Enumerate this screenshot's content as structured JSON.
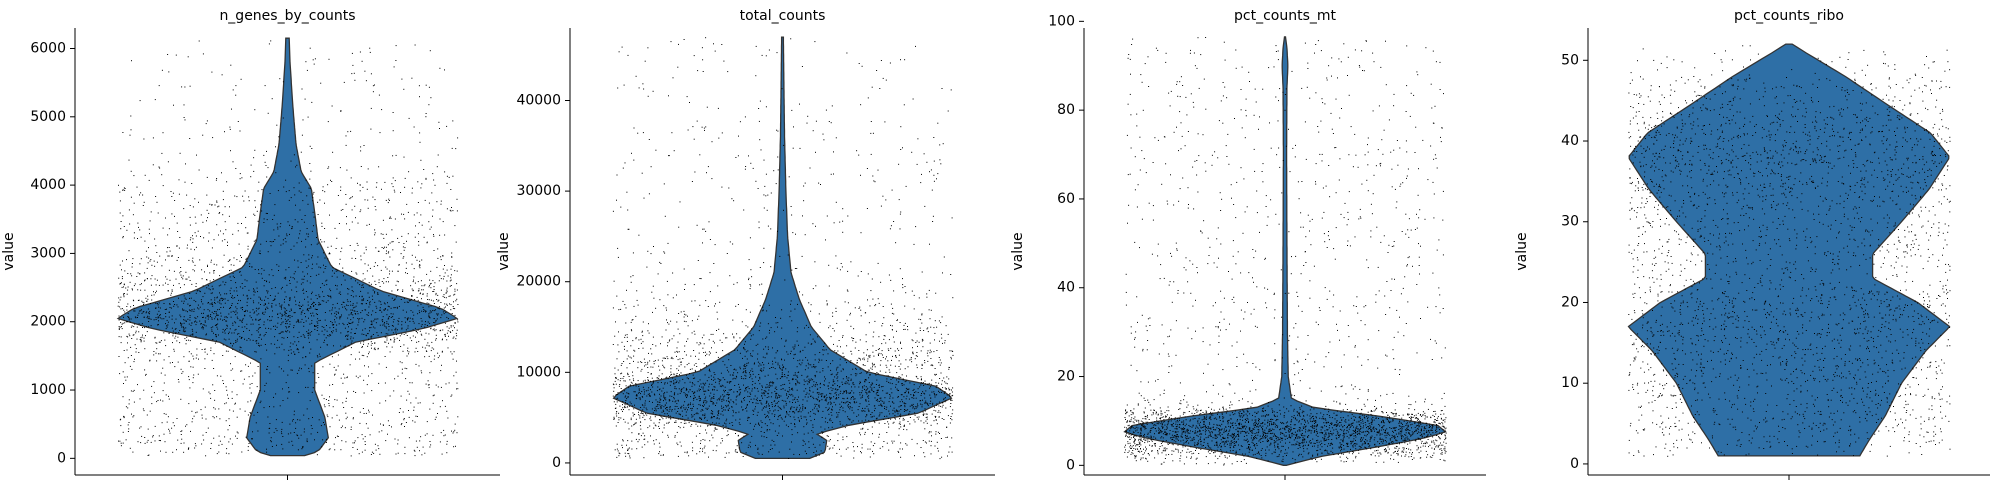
{
  "colors": {
    "violin_fill": "#2e6fa6",
    "violin_edge": "#333333",
    "points": "#000000"
  },
  "chart_data": [
    {
      "type": "violin",
      "title": "n_genes_by_counts",
      "ylabel": "value",
      "ylim": [
        -200,
        6300
      ],
      "yticks": [
        0,
        1000,
        2000,
        3000,
        4000,
        5000,
        6000
      ],
      "ytick_labels": [
        "0",
        "1000",
        "2000",
        "3000",
        "4000",
        "5000",
        "6000"
      ],
      "data_range": [
        40,
        6150
      ],
      "profile": [
        [
          40,
          0.1
        ],
        [
          100,
          0.18
        ],
        [
          300,
          0.24
        ],
        [
          600,
          0.22
        ],
        [
          1000,
          0.16
        ],
        [
          1400,
          0.16
        ],
        [
          1700,
          0.4
        ],
        [
          1900,
          0.8
        ],
        [
          2050,
          1.0
        ],
        [
          2200,
          0.9
        ],
        [
          2450,
          0.55
        ],
        [
          2800,
          0.26
        ],
        [
          3200,
          0.18
        ],
        [
          3600,
          0.16
        ],
        [
          3950,
          0.14
        ],
        [
          4200,
          0.08
        ],
        [
          4600,
          0.05
        ],
        [
          5200,
          0.03
        ],
        [
          5800,
          0.015
        ],
        [
          6150,
          0.01
        ]
      ]
    },
    {
      "type": "violin",
      "title": "total_counts",
      "ylabel": "value",
      "ylim": [
        -1000,
        48000
      ],
      "yticks": [
        0,
        10000,
        20000,
        30000,
        40000
      ],
      "ytick_labels": [
        "0",
        "10000",
        "20000",
        "30000",
        "40000"
      ],
      "data_range": [
        500,
        47000
      ],
      "profile": [
        [
          500,
          0.16
        ],
        [
          1200,
          0.25
        ],
        [
          2500,
          0.26
        ],
        [
          3200,
          0.2
        ],
        [
          4200,
          0.4
        ],
        [
          5500,
          0.8
        ],
        [
          7200,
          1.0
        ],
        [
          8500,
          0.9
        ],
        [
          10000,
          0.5
        ],
        [
          12500,
          0.28
        ],
        [
          15000,
          0.17
        ],
        [
          18000,
          0.1
        ],
        [
          21000,
          0.05
        ],
        [
          25000,
          0.03
        ],
        [
          30000,
          0.02
        ],
        [
          36000,
          0.012
        ],
        [
          42000,
          0.008
        ],
        [
          47000,
          0.005
        ]
      ]
    },
    {
      "type": "violin",
      "title": "pct_counts_mt",
      "ylabel": "value",
      "ylim": [
        -1.5,
        98.5
      ],
      "yticks": [
        0,
        20,
        40,
        60,
        80,
        100
      ],
      "ytick_labels": [
        "0",
        "20",
        "40",
        "60",
        "80",
        "100"
      ],
      "data_range": [
        0,
        96.5
      ],
      "profile": [
        [
          0,
          0.01
        ],
        [
          2,
          0.22
        ],
        [
          4,
          0.55
        ],
        [
          6,
          0.85
        ],
        [
          7.5,
          1.0
        ],
        [
          9,
          0.95
        ],
        [
          11,
          0.6
        ],
        [
          13,
          0.18
        ],
        [
          15,
          0.04
        ],
        [
          20,
          0.02
        ],
        [
          30,
          0.015
        ],
        [
          50,
          0.012
        ],
        [
          70,
          0.01
        ],
        [
          85,
          0.012
        ],
        [
          90,
          0.018
        ],
        [
          94,
          0.012
        ],
        [
          96.5,
          0.003
        ]
      ]
    },
    {
      "type": "violin",
      "title": "pct_counts_ribo",
      "ylabel": "value",
      "ylim": [
        -1,
        54
      ],
      "yticks": [
        0,
        10,
        20,
        30,
        40,
        50
      ],
      "ytick_labels": [
        "0",
        "10",
        "20",
        "30",
        "40",
        "50"
      ],
      "data_range": [
        1,
        52
      ],
      "profile": [
        [
          1,
          0.44
        ],
        [
          3,
          0.5
        ],
        [
          6,
          0.6
        ],
        [
          10,
          0.7
        ],
        [
          14,
          0.85
        ],
        [
          17,
          1.0
        ],
        [
          20,
          0.8
        ],
        [
          23,
          0.52
        ],
        [
          26,
          0.52
        ],
        [
          30,
          0.7
        ],
        [
          34,
          0.87
        ],
        [
          38,
          1.0
        ],
        [
          41,
          0.88
        ],
        [
          44,
          0.65
        ],
        [
          48,
          0.35
        ],
        [
          51,
          0.1
        ],
        [
          52,
          0.02
        ]
      ]
    }
  ]
}
